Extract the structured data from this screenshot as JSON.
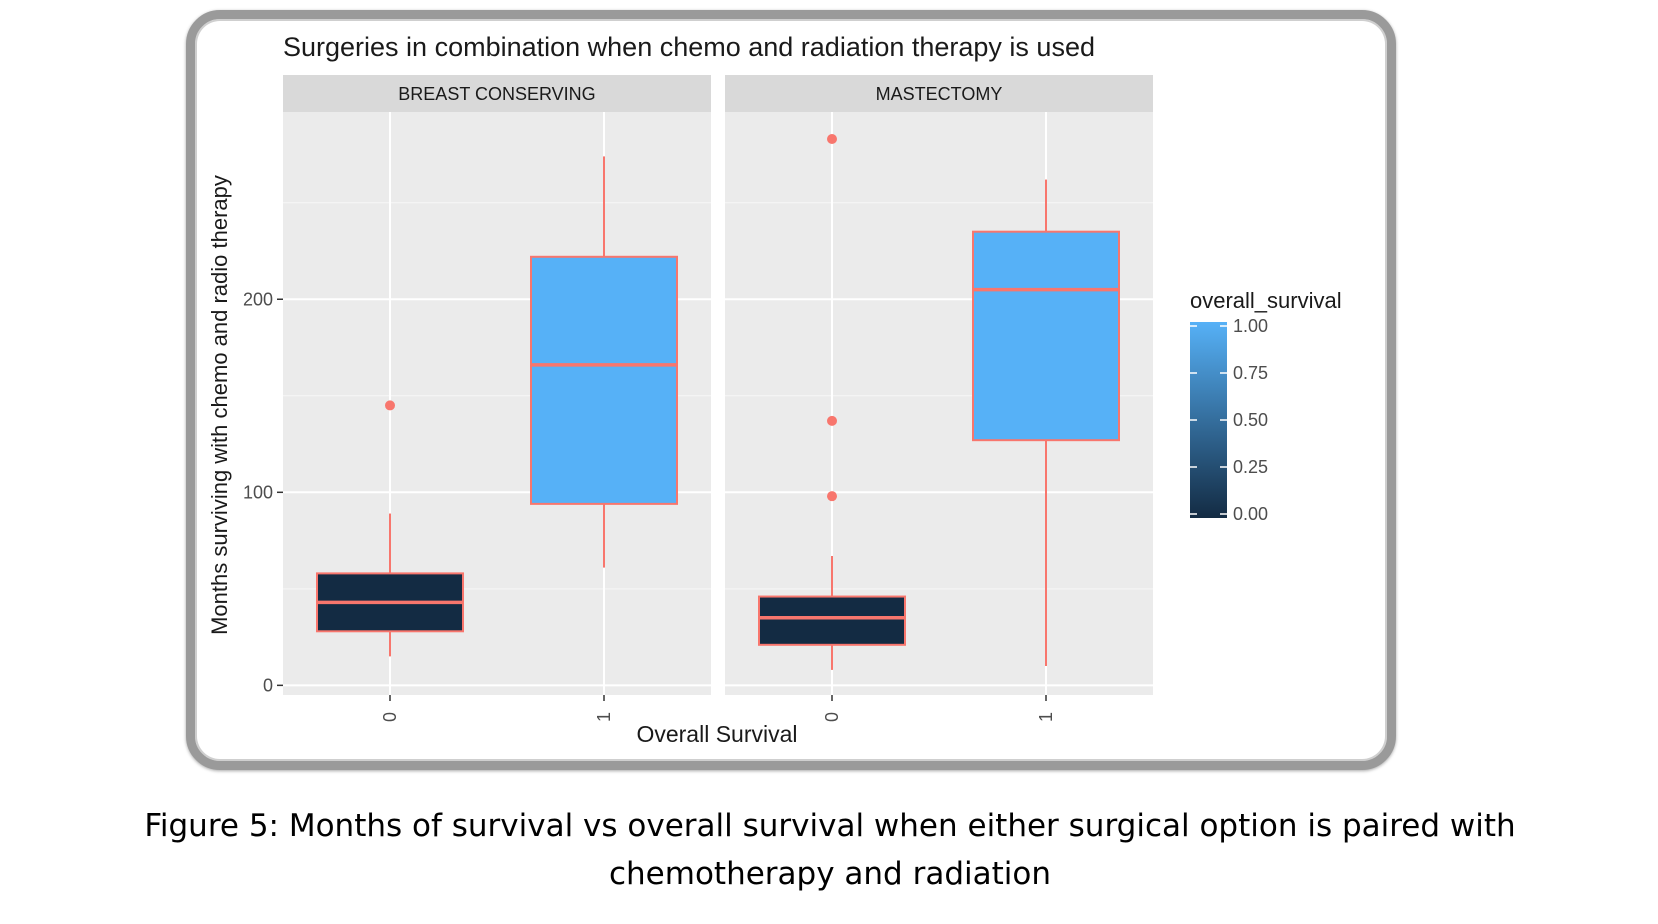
{
  "chart_data": {
    "type": "boxplot",
    "title": "Surgeries in combination when chemo and radiation therapy is used",
    "xlabel": "Overall Survival",
    "ylabel": "Months surviving with chemo and radio therapy",
    "ylim": [
      -5,
      297
    ],
    "yticks": [
      0,
      100,
      200
    ],
    "categories": [
      "0",
      "1"
    ],
    "grid": true,
    "facets": [
      {
        "label": "BREAST CONSERVING",
        "boxes": [
          {
            "x": "0",
            "overall_survival": 0,
            "lower_whisker": 15,
            "q1": 28,
            "median": 43,
            "q3": 58,
            "upper_whisker": 89,
            "outliers": [
              145
            ]
          },
          {
            "x": "1",
            "overall_survival": 1,
            "lower_whisker": 61,
            "q1": 94,
            "median": 166,
            "q3": 222,
            "upper_whisker": 274,
            "outliers": []
          }
        ]
      },
      {
        "label": "MASTECTOMY",
        "boxes": [
          {
            "x": "0",
            "overall_survival": 0,
            "lower_whisker": 8,
            "q1": 21,
            "median": 35,
            "q3": 46,
            "upper_whisker": 67,
            "outliers": [
              98,
              137,
              283
            ]
          },
          {
            "x": "1",
            "overall_survival": 1,
            "lower_whisker": 10,
            "q1": 127,
            "median": 205,
            "q3": 235,
            "upper_whisker": 262,
            "outliers": []
          }
        ]
      }
    ],
    "legend": {
      "title": "overall_survival",
      "type": "colorbar",
      "position": "right",
      "ticks": [
        "1.00",
        "0.75",
        "0.50",
        "0.25",
        "0.00"
      ],
      "color_low": "#132b43",
      "color_high": "#56b1f7"
    },
    "colors": {
      "box_outline": "#f8766d",
      "panel_bg": "#ebebeb",
      "strip_bg": "#d9d9d9",
      "grid": "#ffffff"
    }
  },
  "caption": "Figure 5: Months of survival vs overall survival when either surgical option is paired with chemotherapy and radiation"
}
